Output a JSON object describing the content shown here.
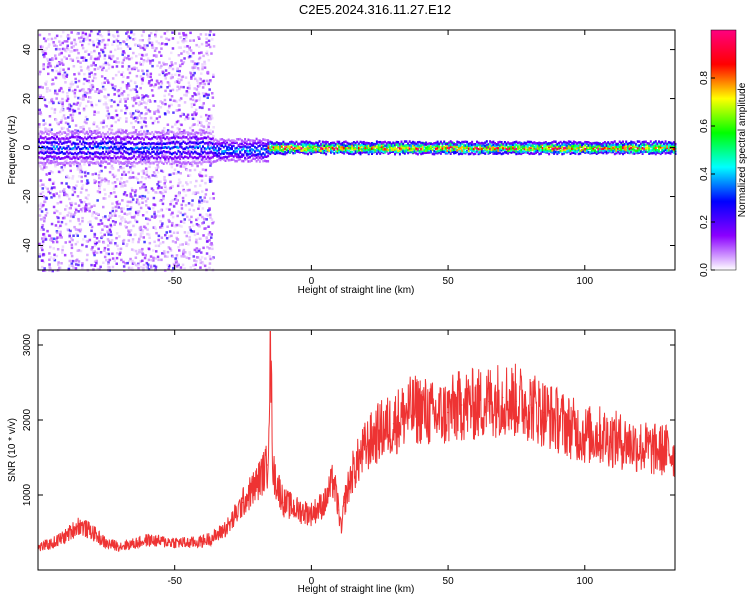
{
  "title": "C2E5.2024.316.11.27.E12",
  "chart_data": [
    {
      "type": "heatmap",
      "xlabel": "Height of straight line (km)",
      "ylabel": "Frequency (Hz)",
      "xlim": [
        -100,
        133
      ],
      "ylim": [
        -50,
        48
      ],
      "xticks": [
        -50,
        0,
        50,
        100
      ],
      "yticks": [
        -40,
        -20,
        0,
        20,
        40
      ],
      "colorbar": {
        "label": "Normalized spectral amplitude",
        "range": [
          0.0,
          1.0
        ],
        "ticks": [
          0.0,
          0.2,
          0.4,
          0.6,
          0.8
        ],
        "tick_labels": [
          "0.0",
          "0.2",
          "0.4",
          "0.6",
          "0.8"
        ],
        "colormap": [
          "#ffffff",
          "#8b00ff",
          "#0000ff",
          "#00ffff",
          "#00ff00",
          "#ffff00",
          "#ff0000",
          "#ff0080"
        ]
      },
      "bands": [
        {
          "x": [
            -100,
            -36
          ],
          "freq_center": 0,
          "freq_halfwidth": 6,
          "peak_amplitude": 0.35
        },
        {
          "x": [
            -36,
            -16
          ],
          "freq_center": -1,
          "freq_halfwidth": 4,
          "peak_amplitude": 0.4
        },
        {
          "x": [
            -16,
            133
          ],
          "freq_center": 0,
          "freq_halfwidth": 2,
          "peak_amplitude": 0.95
        }
      ],
      "scatter_region": {
        "x": [
          -100,
          -36
        ],
        "freq": [
          -50,
          48
        ]
      }
    },
    {
      "type": "line",
      "color": "#ee3333",
      "xlabel": "Height of straight line (km)",
      "ylabel": "SNR (10 * v/v)",
      "xlim": [
        -100,
        133
      ],
      "ylim": [
        0,
        3200
      ],
      "xticks": [
        -50,
        0,
        50,
        100
      ],
      "yticks": [
        1000,
        2000,
        3000
      ],
      "x": [
        -100,
        -95,
        -90,
        -85,
        -80,
        -75,
        -70,
        -65,
        -60,
        -55,
        -50,
        -45,
        -40,
        -35,
        -30,
        -25,
        -20,
        -16,
        -15,
        -14,
        -10,
        -5,
        0,
        5,
        8,
        10,
        11,
        12,
        15,
        20,
        25,
        30,
        35,
        40,
        45,
        50,
        55,
        60,
        65,
        70,
        75,
        80,
        85,
        90,
        95,
        100,
        105,
        110,
        115,
        120,
        125,
        130,
        133
      ],
      "y": [
        300,
        350,
        450,
        600,
        500,
        350,
        320,
        350,
        400,
        380,
        370,
        360,
        380,
        450,
        600,
        900,
        1150,
        1400,
        3000,
        1300,
        900,
        800,
        750,
        900,
        1200,
        800,
        500,
        900,
        1300,
        1650,
        1850,
        1950,
        2100,
        2150,
        2050,
        2100,
        2200,
        2200,
        2250,
        2300,
        2250,
        2200,
        2100,
        2000,
        1900,
        1800,
        1800,
        1750,
        1700,
        1650,
        1600,
        1600,
        1550
      ]
    }
  ]
}
